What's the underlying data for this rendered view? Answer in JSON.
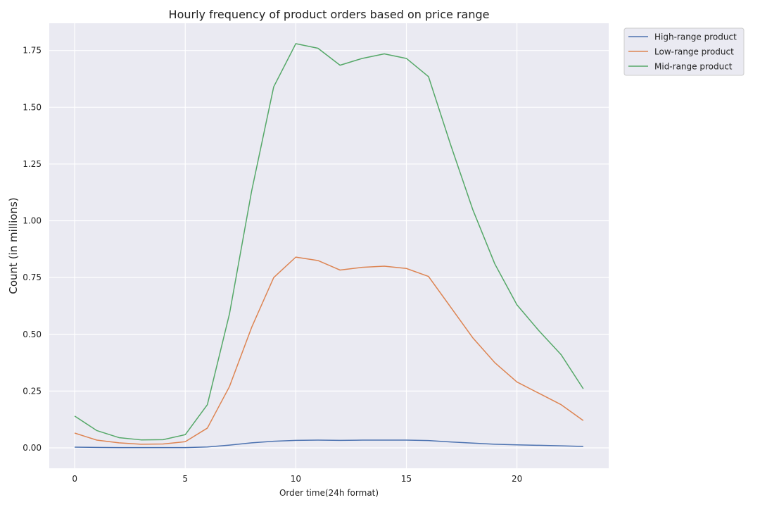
{
  "chart_data": {
    "type": "line",
    "title": "Hourly frequency of product orders based on price range",
    "xlabel": "Order time(24h format)",
    "ylabel": "Count (in millions)",
    "xlim": [
      -1.15,
      24.15
    ],
    "ylim": [
      -0.09,
      1.87
    ],
    "x_ticks": [
      0,
      5,
      10,
      15,
      20
    ],
    "y_ticks": [
      0.0,
      0.25,
      0.5,
      0.75,
      1.0,
      1.25,
      1.5,
      1.75
    ],
    "y_tick_labels": [
      "0.00",
      "0.25",
      "0.50",
      "0.75",
      "1.00",
      "1.25",
      "1.50",
      "1.75"
    ],
    "grid": true,
    "legend_position": "outside-top-right",
    "background_color": "#eaeaf2",
    "grid_color": "#ffffff",
    "x": [
      0,
      1,
      2,
      3,
      4,
      5,
      6,
      7,
      8,
      9,
      10,
      11,
      12,
      13,
      14,
      15,
      16,
      17,
      18,
      19,
      20,
      21,
      22,
      23
    ],
    "series": [
      {
        "name": "High-range product",
        "color": "#4c72b0",
        "values": [
          0.003,
          0.002,
          0.001,
          0.001,
          0.001,
          0.001,
          0.004,
          0.012,
          0.022,
          0.029,
          0.033,
          0.034,
          0.033,
          0.034,
          0.034,
          0.034,
          0.032,
          0.026,
          0.021,
          0.016,
          0.013,
          0.011,
          0.009,
          0.006
        ]
      },
      {
        "name": "Low-range product",
        "color": "#dd8452",
        "values": [
          0.065,
          0.034,
          0.022,
          0.016,
          0.017,
          0.027,
          0.087,
          0.27,
          0.53,
          0.75,
          0.84,
          0.825,
          0.783,
          0.795,
          0.8,
          0.79,
          0.755,
          0.62,
          0.485,
          0.375,
          0.29,
          0.24,
          0.19,
          0.12
        ]
      },
      {
        "name": "Mid-range product",
        "color": "#55a868",
        "values": [
          0.14,
          0.076,
          0.045,
          0.035,
          0.036,
          0.058,
          0.19,
          0.59,
          1.13,
          1.59,
          1.78,
          1.76,
          1.685,
          1.715,
          1.735,
          1.715,
          1.635,
          1.335,
          1.05,
          0.81,
          0.63,
          0.515,
          0.41,
          0.26
        ]
      }
    ]
  }
}
